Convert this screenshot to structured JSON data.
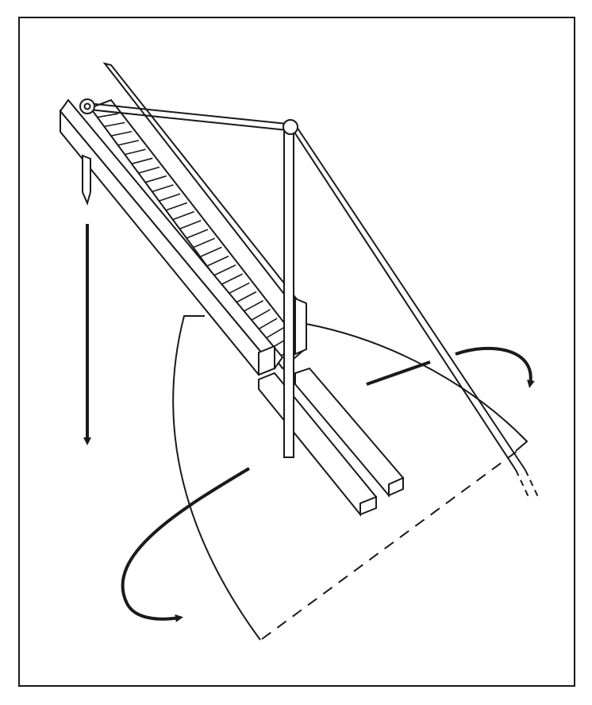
{
  "figure": {
    "caption": "",
    "stroke_color": "#1a1a1a",
    "fill_color": "#ffffff",
    "step_count": 28,
    "icons": [
      "pulley-icon",
      "pivot-icon",
      "arrow-down-icon",
      "rotate-arrow-icon"
    ]
  }
}
